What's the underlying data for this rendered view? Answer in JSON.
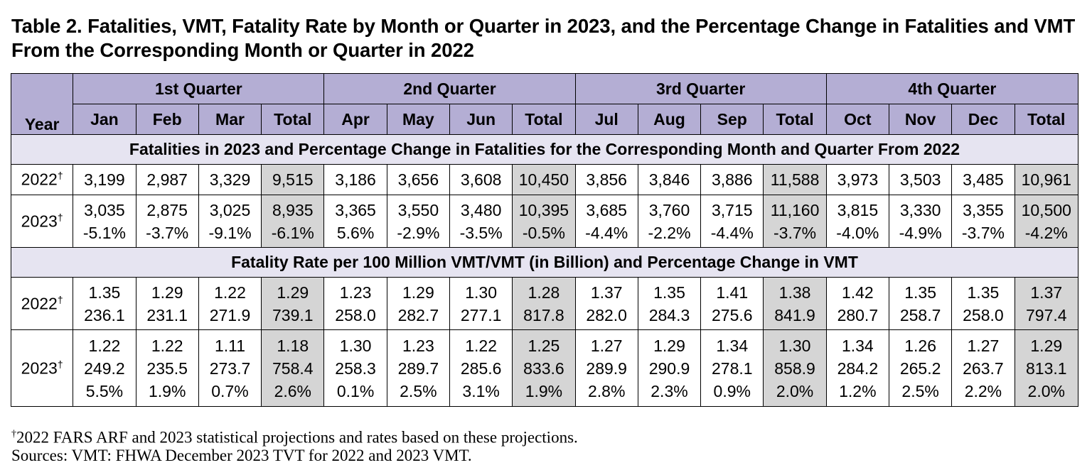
{
  "title": "Table 2. Fatalities, VMT, Fatality Rate by Month or Quarter in 2023, and the Percentage Change in Fatalities and VMT From the Corresponding Month or Quarter in 2022",
  "header": {
    "year": "Year",
    "quarters": [
      "1st Quarter",
      "2nd Quarter",
      "3rd Quarter",
      "4th Quarter"
    ],
    "columns": [
      "Jan",
      "Feb",
      "Mar",
      "Total",
      "Apr",
      "May",
      "Jun",
      "Total",
      "Jul",
      "Aug",
      "Sep",
      "Total",
      "Oct",
      "Nov",
      "Dec",
      "Total"
    ]
  },
  "sections": [
    {
      "title": "Fatalities in 2023 and Percentage Change in Fatalities for the Corresponding Month and Quarter From 2022",
      "rows": [
        {
          "year": "2022",
          "dagger": "†",
          "cells": [
            [
              "3,199"
            ],
            [
              "2,987"
            ],
            [
              "3,329"
            ],
            [
              "9,515"
            ],
            [
              "3,186"
            ],
            [
              "3,656"
            ],
            [
              "3,608"
            ],
            [
              "10,450"
            ],
            [
              "3,856"
            ],
            [
              "3,846"
            ],
            [
              "3,886"
            ],
            [
              "11,588"
            ],
            [
              "3,973"
            ],
            [
              "3,503"
            ],
            [
              "3,485"
            ],
            [
              "10,961"
            ]
          ]
        },
        {
          "year": "2023",
          "dagger": "†",
          "cells": [
            [
              "3,035",
              "-5.1%"
            ],
            [
              "2,875",
              "-3.7%"
            ],
            [
              "3,025",
              "-9.1%"
            ],
            [
              "8,935",
              "-6.1%"
            ],
            [
              "3,365",
              "5.6%"
            ],
            [
              "3,550",
              "-2.9%"
            ],
            [
              "3,480",
              "-3.5%"
            ],
            [
              "10,395",
              "-0.5%"
            ],
            [
              "3,685",
              "-4.4%"
            ],
            [
              "3,760",
              "-2.2%"
            ],
            [
              "3,715",
              "-4.4%"
            ],
            [
              "11,160",
              "-3.7%"
            ],
            [
              "3,815",
              "-4.0%"
            ],
            [
              "3,330",
              "-4.9%"
            ],
            [
              "3,355",
              "-3.7%"
            ],
            [
              "10,500",
              "-4.2%"
            ]
          ]
        }
      ]
    },
    {
      "title": "Fatality Rate per 100 Million VMT/VMT (in Billion) and Percentage Change in VMT",
      "rows": [
        {
          "year": "2022",
          "dagger": "†",
          "cells": [
            [
              "1.35",
              "236.1"
            ],
            [
              "1.29",
              "231.1"
            ],
            [
              "1.22",
              "271.9"
            ],
            [
              "1.29",
              "739.1"
            ],
            [
              "1.23",
              "258.0"
            ],
            [
              "1.29",
              "282.7"
            ],
            [
              "1.30",
              "277.1"
            ],
            [
              "1.28",
              "817.8"
            ],
            [
              "1.37",
              "282.0"
            ],
            [
              "1.35",
              "284.3"
            ],
            [
              "1.41",
              "275.6"
            ],
            [
              "1.38",
              "841.9"
            ],
            [
              "1.42",
              "280.7"
            ],
            [
              "1.35",
              "258.7"
            ],
            [
              "1.35",
              "258.0"
            ],
            [
              "1.37",
              "797.4"
            ]
          ]
        },
        {
          "year": "2023",
          "dagger": "†",
          "cells": [
            [
              "1.22",
              "249.2",
              "5.5%"
            ],
            [
              "1.22",
              "235.5",
              "1.9%"
            ],
            [
              "1.11",
              "273.7",
              "0.7%"
            ],
            [
              "1.18",
              "758.4",
              "2.6%"
            ],
            [
              "1.30",
              "258.3",
              "0.1%"
            ],
            [
              "1.23",
              "289.7",
              "2.5%"
            ],
            [
              "1.22",
              "285.6",
              "3.1%"
            ],
            [
              "1.25",
              "833.6",
              "1.9%"
            ],
            [
              "1.27",
              "289.9",
              "2.8%"
            ],
            [
              "1.29",
              "290.9",
              "2.3%"
            ],
            [
              "1.34",
              "278.1",
              "0.9%"
            ],
            [
              "1.30",
              "858.9",
              "2.0%"
            ],
            [
              "1.34",
              "284.2",
              "1.2%"
            ],
            [
              "1.26",
              "265.2",
              "2.5%"
            ],
            [
              "1.27",
              "263.7",
              "2.2%"
            ],
            [
              "1.29",
              "813.1",
              "2.0%"
            ]
          ]
        }
      ]
    }
  ],
  "footnotes": {
    "note1_mark": "†",
    "note1_text": "2022 FARS ARF and 2023 statistical projections and rates based on these projections.",
    "note2_text": "Sources: VMT: FHWA December 2023 TVT for 2022 and 2023 VMT."
  }
}
